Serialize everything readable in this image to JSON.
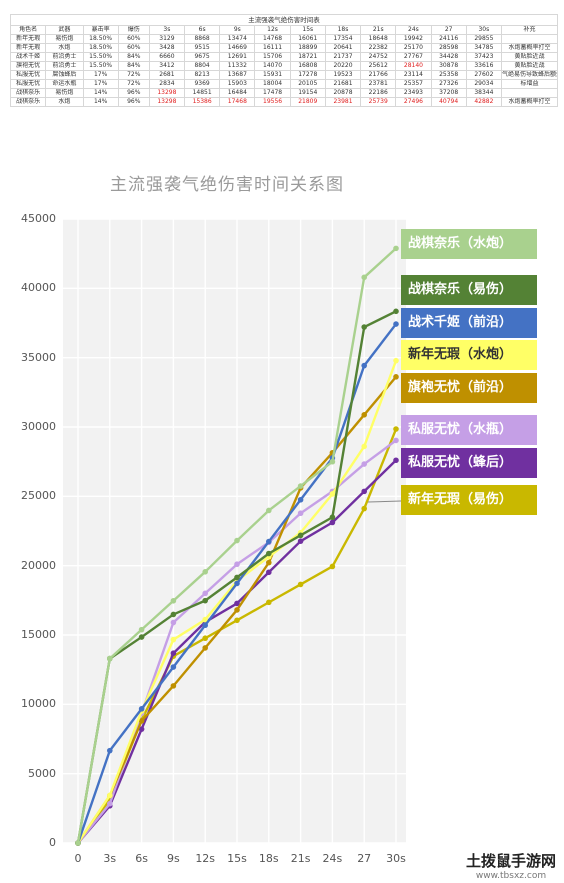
{
  "table": {
    "title": "主流强袭气绝伤害时间表",
    "headers": [
      "角色名",
      "武器",
      "暴击率",
      "爆伤",
      "3s",
      "6s",
      "9s",
      "12s",
      "15s",
      "18s",
      "21s",
      "24s",
      "27",
      "30s",
      "补充"
    ],
    "rows": [
      {
        "cells": [
          "新年无瑕",
          "易伤炮",
          "18.50%",
          "60%",
          "3129",
          "8868",
          "13474",
          "14768",
          "16061",
          "17354",
          "18648",
          "19942",
          "24116",
          "29855",
          ""
        ],
        "red": []
      },
      {
        "cells": [
          "新年无瑕",
          "水炮",
          "18.50%",
          "60%",
          "3428",
          "9515",
          "14669",
          "16111",
          "18899",
          "20641",
          "22382",
          "25170",
          "28598",
          "34785",
          "水炮蓄概率打空"
        ],
        "red": []
      },
      {
        "cells": [
          "战术千姬",
          "前沿勇士",
          "15.50%",
          "84%",
          "6660",
          "9675",
          "12691",
          "15706",
          "18721",
          "21737",
          "24752",
          "27767",
          "34428",
          "37423",
          "黄贴脸近战"
        ],
        "red": []
      },
      {
        "cells": [
          "旗袍无忧",
          "前沿勇士",
          "15.50%",
          "84%",
          "3412",
          "8804",
          "11332",
          "14070",
          "16808",
          "20220",
          "25612",
          "28140",
          "30878",
          "33616",
          "黄贴脸近战"
        ],
        "red": [
          11
        ]
      },
      {
        "cells": [
          "私服无忧",
          "腐蚀蜂后",
          "17%",
          "72%",
          "2681",
          "8213",
          "13687",
          "15931",
          "17278",
          "19523",
          "21766",
          "23114",
          "25358",
          "27602",
          "气绝易伤导致蜂后额外"
        ],
        "red": []
      },
      {
        "cells": [
          "私服无忧",
          "命运水瓶",
          "17%",
          "72%",
          "2834",
          "9369",
          "15903",
          "18004",
          "20105",
          "21681",
          "23781",
          "25357",
          "27326",
          "29034",
          "标增益"
        ],
        "red": []
      },
      {
        "cells": [
          "战棋奈乐",
          "易伤炮",
          "14%",
          "96%",
          "13298",
          "14851",
          "16484",
          "17478",
          "19154",
          "20878",
          "22186",
          "23493",
          "37208",
          "38344",
          ""
        ],
        "red": [
          4
        ]
      },
      {
        "cells": [
          "战棋奈乐",
          "水炮",
          "14%",
          "96%",
          "13298",
          "15386",
          "17468",
          "19556",
          "21809",
          "23981",
          "25739",
          "27496",
          "40794",
          "42882",
          "水炮蓄概率打空"
        ],
        "red": [
          4,
          5,
          6,
          7,
          8,
          9,
          10,
          11,
          12,
          13
        ]
      }
    ]
  },
  "chart_data": {
    "type": "line",
    "title": "主流强袭气绝伤害时间关系图",
    "x": [
      "0",
      "3s",
      "6s",
      "9s",
      "12s",
      "15s",
      "18s",
      "21s",
      "24s",
      "27",
      "30s"
    ],
    "ylim": [
      0,
      45000
    ],
    "yticks": [
      0,
      5000,
      10000,
      15000,
      20000,
      25000,
      30000,
      35000,
      40000,
      45000
    ],
    "grid": true,
    "legend_position": "right",
    "series": [
      {
        "name": "战棋奈乐（水炮）",
        "color": "#a9d18e",
        "text_color": "#ffffff",
        "values": [
          0,
          13298,
          15386,
          17468,
          19556,
          21809,
          23981,
          25739,
          27496,
          40794,
          42882
        ]
      },
      {
        "name": "战棋奈乐（易伤）",
        "color": "#548235",
        "text_color": "#ffffff",
        "values": [
          0,
          13298,
          14851,
          16484,
          17478,
          19154,
          20878,
          22186,
          23493,
          37208,
          38344
        ]
      },
      {
        "name": "战术千姬（前沿）",
        "color": "#4472c4",
        "text_color": "#ffffff",
        "values": [
          0,
          6660,
          9675,
          12691,
          15706,
          18721,
          21737,
          24752,
          27767,
          34428,
          37423
        ]
      },
      {
        "name": "新年无瑕（水炮）",
        "color": "#ffff66",
        "text_color": "#333333",
        "values": [
          0,
          3428,
          9515,
          14669,
          16111,
          18899,
          20641,
          22382,
          25170,
          28598,
          34785
        ]
      },
      {
        "name": "旗袍无忧（前沿）",
        "color": "#bf9000",
        "text_color": "#ffffff",
        "values": [
          0,
          3412,
          8804,
          11332,
          14070,
          16808,
          20220,
          25612,
          28140,
          30878,
          33616
        ]
      },
      {
        "name": "私服无忧（水瓶）",
        "color": "#c59fe6",
        "text_color": "#ffffff",
        "values": [
          0,
          2834,
          9369,
          15903,
          18004,
          20105,
          21681,
          23781,
          25357,
          27326,
          29034
        ]
      },
      {
        "name": "私服无忧（蜂后）",
        "color": "#7030a0",
        "text_color": "#ffffff",
        "values": [
          0,
          2681,
          8213,
          13687,
          15931,
          17278,
          19523,
          21766,
          23114,
          25358,
          27602
        ]
      },
      {
        "name": "新年无瑕（易伤）",
        "color": "#c9b800",
        "text_color": "#ffffff",
        "values": [
          0,
          3129,
          8868,
          13474,
          14768,
          16061,
          17354,
          18648,
          19942,
          24116,
          29855
        ]
      }
    ]
  },
  "watermark": {
    "title": "土拨鼠手游网",
    "url": "www.tbsxz.com"
  }
}
